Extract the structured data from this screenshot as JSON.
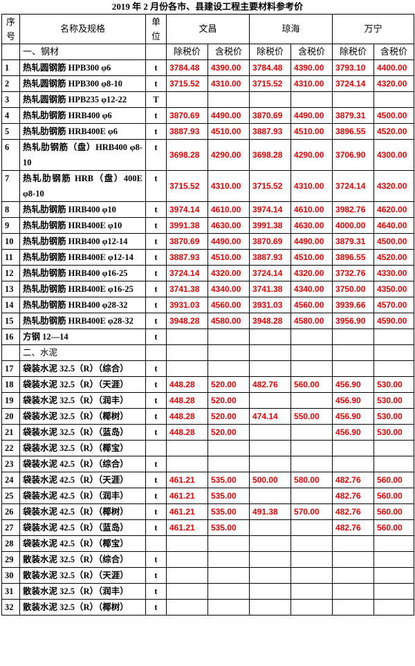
{
  "header": {
    "title": "2019 年 2 月份各市、县建设工程主要材料参考价",
    "col_no": "序号",
    "col_name": "名称及规格",
    "col_unit": "单位",
    "regions": [
      "文昌",
      "琼海",
      "万宁"
    ],
    "price_types": [
      "除税价",
      "含税价",
      "除税价",
      "含税价",
      "除税价",
      "含税价"
    ],
    "section": "一、钢材"
  },
  "table": {
    "rows": [
      {
        "no": "1",
        "name": "热轧圆钢筋 HPB300 φ6",
        "unit": "t",
        "prices": [
          "3784.48",
          "4390.00",
          "3784.48",
          "4390.00",
          "3793.10",
          "4400.00"
        ]
      },
      {
        "no": "2",
        "name": "热轧圆钢筋 HPB300 φ8-10",
        "unit": "t",
        "prices": [
          "3715.52",
          "4310.00",
          "3715.52",
          "4310.00",
          "3724.14",
          "4320.00"
        ]
      },
      {
        "no": "3",
        "name": "热轧圆钢筋 HPB235 φ12-22",
        "unit": "T",
        "prices": [
          null,
          null,
          null,
          null,
          null,
          null
        ]
      },
      {
        "no": "4",
        "name": "热轧肋钢筋 HRB400 φ6",
        "unit": "t",
        "prices": [
          "3870.69",
          "4490.00",
          "3870.69",
          "4490.00",
          "3879.31",
          "4500.00"
        ]
      },
      {
        "no": "5",
        "name": "热轧肋钢筋 HRB400E φ6",
        "unit": "t",
        "prices": [
          "3887.93",
          "4510.00",
          "3887.93",
          "4510.00",
          "3896.55",
          "4520.00"
        ]
      },
      {
        "no": "6",
        "name": "热轧肋钢筋（盘）HRB400 φ8-10",
        "unit": "t",
        "prices": [
          "3698.28",
          "4290.00",
          "3698.28",
          "4290.00",
          "3706.90",
          "4300.00"
        ]
      },
      {
        "no": "7",
        "name": "热轧肋钢筋 HRB（盘）400E φ8-10",
        "unit": "t",
        "prices": [
          "3715.52",
          "4310.00",
          "3715.52",
          "4310.00",
          "3724.14",
          "4320.00"
        ]
      },
      {
        "no": "8",
        "name": "热轧肋钢筋 HRB400 φ10",
        "unit": "t",
        "prices": [
          "3974.14",
          "4610.00",
          "3974.14",
          "4610.00",
          "3982.76",
          "4620.00"
        ]
      },
      {
        "no": "9",
        "name": "热轧肋钢筋 HRB400E φ10",
        "unit": "t",
        "prices": [
          "3991.38",
          "4630.00",
          "3991.38",
          "4630.00",
          "4000.00",
          "4640.00"
        ]
      },
      {
        "no": "10",
        "name": "热轧肋钢筋 HRB400 φ12-14",
        "unit": "t",
        "prices": [
          "3870.69",
          "4490.00",
          "3870.69",
          "4490.00",
          "3879.31",
          "4500.00"
        ]
      },
      {
        "no": "11",
        "name": "热轧肋钢筋 HRB400E φ12-14",
        "unit": "t",
        "prices": [
          "3887.93",
          "4510.00",
          "3887.93",
          "4510.00",
          "3896.55",
          "4520.00"
        ]
      },
      {
        "no": "12",
        "name": "热轧肋钢筋 HRB400 φ16-25",
        "unit": "t",
        "prices": [
          "3724.14",
          "4320.00",
          "3724.14",
          "4320.00",
          "3732.76",
          "4330.00"
        ]
      },
      {
        "no": "13",
        "name": "热轧肋钢筋 HRB400E φ16-25",
        "unit": "t",
        "prices": [
          "3741.38",
          "4340.00",
          "3741.38",
          "4340.00",
          "3750.00",
          "4350.00"
        ]
      },
      {
        "no": "14",
        "name": "热轧肋钢筋 HRB400 φ28-32",
        "unit": "t",
        "prices": [
          "3931.03",
          "4560.00",
          "3931.03",
          "4560.00",
          "3939.66",
          "4570.00"
        ]
      },
      {
        "no": "15",
        "name": "热轧肋钢筋 HRB400E φ28-32",
        "unit": "t",
        "prices": [
          "3948.28",
          "4580.00",
          "3948.28",
          "4580.00",
          "3956.90",
          "4590.00"
        ]
      },
      {
        "no": "16",
        "name": "方钢 12—14",
        "unit": "t",
        "prices": [
          null,
          null,
          null,
          null,
          null,
          null
        ]
      },
      {
        "section": "二、水泥"
      },
      {
        "no": "17",
        "name": "袋装水泥 32.5（R）（综合）",
        "unit": "t",
        "prices": [
          null,
          null,
          null,
          null,
          null,
          null
        ]
      },
      {
        "no": "18",
        "name": "袋装水泥 32.5（R）（天涯）",
        "unit": "t",
        "prices": [
          "448.28",
          "520.00",
          "482.76",
          "560.00",
          "456.90",
          "530.00"
        ]
      },
      {
        "no": "19",
        "name": "袋装水泥 32.5（R）（润丰）",
        "unit": "t",
        "prices": [
          "448.28",
          "520.00",
          null,
          null,
          "456.90",
          "530.00"
        ]
      },
      {
        "no": "20",
        "name": "袋装水泥 32.5（R）（椰树）",
        "unit": "t",
        "prices": [
          "448.28",
          "520.00",
          "474.14",
          "550.00",
          "456.90",
          "530.00"
        ]
      },
      {
        "no": "21",
        "name": "袋装水泥 32.5（R）（蓝岛）",
        "unit": "t",
        "prices": [
          "448.28",
          "520.00",
          null,
          null,
          "456.90",
          "530.00"
        ]
      },
      {
        "no": "22",
        "name": "袋装水泥 32.5（R）（椰宝）",
        "unit": null,
        "prices": [
          null,
          null,
          null,
          null,
          null,
          null
        ]
      },
      {
        "no": "23",
        "name": "袋装水泥 42.5（R）（综合）",
        "unit": "t",
        "prices": [
          null,
          null,
          null,
          null,
          null,
          null
        ]
      },
      {
        "no": "24",
        "name": "袋装水泥 42.5（R）（天涯）",
        "unit": "t",
        "prices": [
          "461.21",
          "535.00",
          "500.00",
          "580.00",
          "482.76",
          "560.00"
        ]
      },
      {
        "no": "25",
        "name": "袋装水泥 42.5（R）（润丰）",
        "unit": "t",
        "prices": [
          "461.21",
          "535.00",
          null,
          null,
          "482.76",
          "560.00"
        ]
      },
      {
        "no": "26",
        "name": "袋装水泥 42.5（R）（椰树）",
        "unit": "t",
        "prices": [
          "461.21",
          "535.00",
          "491.38",
          "570.00",
          "482.76",
          "560.00"
        ]
      },
      {
        "no": "27",
        "name": "袋装水泥 42.5（R）（蓝岛）",
        "unit": "t",
        "prices": [
          "461.21",
          "535.00",
          null,
          null,
          "482.76",
          "560.00"
        ]
      },
      {
        "no": "28",
        "name": "袋装水泥 42.5（R）（椰宝）",
        "unit": null,
        "prices": [
          null,
          null,
          null,
          null,
          null,
          null
        ]
      },
      {
        "no": "29",
        "name": "散装水泥 32.5（R）（综合）",
        "unit": "t",
        "prices": [
          null,
          null,
          null,
          null,
          null,
          null
        ]
      },
      {
        "no": "30",
        "name": "散装水泥 32.5（R）（天涯）",
        "unit": "t",
        "prices": [
          null,
          null,
          null,
          null,
          null,
          null
        ]
      },
      {
        "no": "31",
        "name": "散装水泥 32.5（R）（润丰）",
        "unit": "t",
        "prices": [
          null,
          null,
          null,
          null,
          null,
          null
        ]
      },
      {
        "no": "32",
        "name": "散装水泥 32.5（R）（椰树）",
        "unit": "t",
        "prices": [
          null,
          null,
          null,
          null,
          null,
          null
        ]
      }
    ]
  }
}
